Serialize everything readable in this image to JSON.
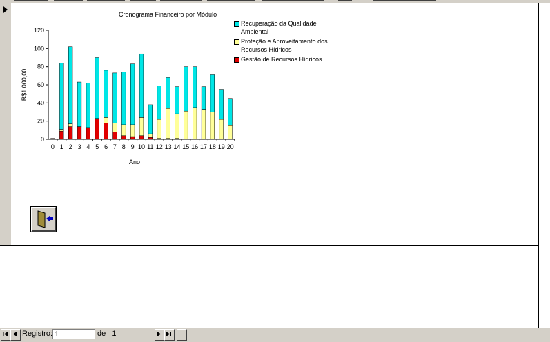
{
  "chart_data": {
    "type": "bar",
    "stacked": true,
    "title": "Cronograma Financeiro por Módulo",
    "xlabel": "Ano",
    "ylabel": "R$1.000,00",
    "ylim": [
      0,
      120
    ],
    "yticks": [
      0,
      20,
      40,
      60,
      80,
      100,
      120
    ],
    "categories": [
      "0",
      "1",
      "2",
      "3",
      "4",
      "5",
      "6",
      "7",
      "8",
      "9",
      "10",
      "11",
      "12",
      "13",
      "14",
      "15",
      "16",
      "17",
      "18",
      "19",
      "20"
    ],
    "series": [
      {
        "name": "Gestão de Recursos Hídricos",
        "color": "#e00000",
        "values": [
          1,
          9,
          14,
          14,
          13,
          23,
          18,
          8,
          4,
          3,
          4,
          2,
          1,
          1,
          1,
          0,
          0,
          0,
          0,
          0,
          0
        ]
      },
      {
        "name": "Proteção e Aproveitamento dos Recursos Hídricos",
        "color": "#ffff99",
        "values": [
          0,
          2,
          3,
          0,
          0,
          0,
          6,
          10,
          12,
          13,
          20,
          4,
          21,
          33,
          27,
          31,
          35,
          33,
          30,
          22,
          15
        ]
      },
      {
        "name": "Recuperação da Qualidade Ambiental",
        "color": "#00e6e6",
        "values": [
          0,
          73,
          85,
          49,
          49,
          67,
          52,
          55,
          58,
          67,
          70,
          32,
          37,
          34,
          30,
          49,
          45,
          25,
          41,
          33,
          30
        ]
      }
    ],
    "legend_position": "right",
    "grid": false
  },
  "legend": [
    {
      "label": "Recuperação da Qualidade Ambiental",
      "color": "#00e6e6"
    },
    {
      "label": "Proteção e Aproveitamento dos Recursos Hídricos",
      "color": "#ffff99"
    },
    {
      "label": "Gestão de Recursos Hídricos",
      "color": "#e00000"
    }
  ],
  "nav": {
    "record_label": "Registro:",
    "record_value": "1",
    "of_label": "de",
    "total_value": "1"
  },
  "exit_button": {
    "icon": "exit-door-icon"
  }
}
